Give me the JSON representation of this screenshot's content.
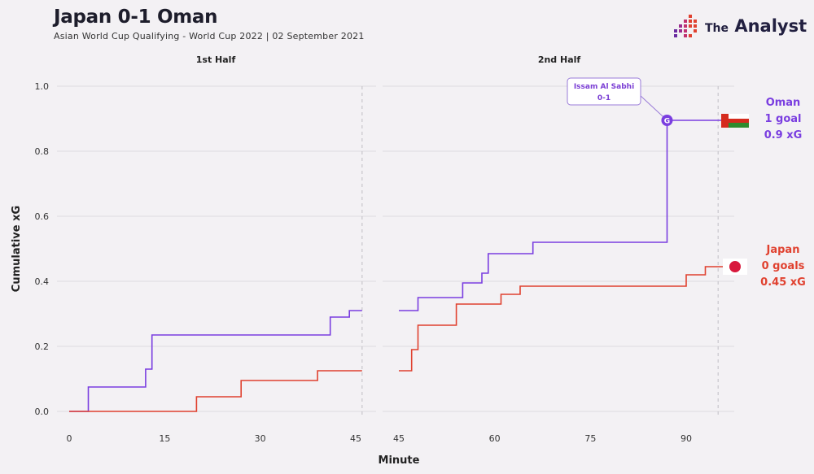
{
  "header": {
    "title": "Japan 0-1 Oman",
    "subtitle": "Asian World Cup Qualifying - World Cup 2022 | 02 September 2021"
  },
  "brand": {
    "the": "The",
    "name": "Analyst",
    "icon": "dot-matrix-logo-icon"
  },
  "colors": {
    "oman": "#7a3ee0",
    "japan": "#e0412f",
    "grid": "#dddbe0",
    "dashed": "#c8c6cc"
  },
  "chart_data": {
    "type": "line",
    "step": true,
    "xlabel": "Minute",
    "ylabel": "Cumulative xG",
    "ylim": [
      0,
      1.0
    ],
    "yticks": [
      "0.0",
      "0.2",
      "0.4",
      "0.6",
      "0.8",
      "1.0"
    ],
    "grid": true,
    "panels": [
      {
        "title": "1st Half",
        "xlim": [
          0,
          46
        ],
        "xticks": [
          0,
          15,
          30,
          45
        ],
        "end_marker": 46
      },
      {
        "title": "2nd Half",
        "xlim": [
          45,
          96
        ],
        "xticks": [
          45,
          60,
          75,
          90
        ],
        "end_marker": 95
      }
    ],
    "series": [
      {
        "name": "Oman",
        "label_lines": [
          "Oman",
          "1 goal",
          "0.9 xG"
        ],
        "half1": [
          [
            0,
            0.0
          ],
          [
            3,
            0.0
          ],
          [
            3,
            0.075
          ],
          [
            12,
            0.075
          ],
          [
            12,
            0.13
          ],
          [
            13,
            0.13
          ],
          [
            13,
            0.235
          ],
          [
            41,
            0.235
          ],
          [
            41,
            0.29
          ],
          [
            44,
            0.29
          ],
          [
            44,
            0.31
          ],
          [
            46,
            0.31
          ]
        ],
        "half2": [
          [
            45,
            0.31
          ],
          [
            48,
            0.31
          ],
          [
            48,
            0.35
          ],
          [
            55,
            0.35
          ],
          [
            55,
            0.395
          ],
          [
            58,
            0.395
          ],
          [
            58,
            0.425
          ],
          [
            59,
            0.425
          ],
          [
            59,
            0.485
          ],
          [
            66,
            0.485
          ],
          [
            66,
            0.52
          ],
          [
            87,
            0.52
          ],
          [
            87,
            0.895
          ],
          [
            96,
            0.895
          ]
        ]
      },
      {
        "name": "Japan",
        "label_lines": [
          "Japan",
          "0 goals",
          "0.45 xG"
        ],
        "half1": [
          [
            0,
            0.0
          ],
          [
            20,
            0.0
          ],
          [
            20,
            0.045
          ],
          [
            27,
            0.045
          ],
          [
            27,
            0.095
          ],
          [
            39,
            0.095
          ],
          [
            39,
            0.125
          ],
          [
            46,
            0.125
          ]
        ],
        "half2": [
          [
            45,
            0.125
          ],
          [
            47,
            0.125
          ],
          [
            47,
            0.19
          ],
          [
            48,
            0.19
          ],
          [
            48,
            0.265
          ],
          [
            54,
            0.265
          ],
          [
            54,
            0.33
          ],
          [
            61,
            0.33
          ],
          [
            61,
            0.36
          ],
          [
            64,
            0.36
          ],
          [
            64,
            0.385
          ],
          [
            90,
            0.385
          ],
          [
            90,
            0.42
          ],
          [
            93,
            0.42
          ],
          [
            93,
            0.445
          ],
          [
            96,
            0.445
          ]
        ]
      }
    ],
    "goal_annotation": {
      "player": "Issam Al Sabhi",
      "score": "0-1",
      "minute": 87,
      "xg": 0.895,
      "marker_text": "G"
    }
  }
}
